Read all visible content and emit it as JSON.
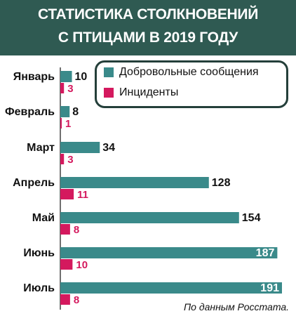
{
  "title": {
    "line1": "СТАТИСТИКА СТОЛКНОВЕНИЙ",
    "line2": "С ПТИЦАМИ В 2019 ГОДУ"
  },
  "legend": {
    "items": [
      {
        "label": "Добровольные сообщения",
        "color": "#3a8a8a"
      },
      {
        "label": "Инциденты",
        "color": "#d4195e"
      }
    ]
  },
  "source": "По данным Росстата.",
  "colors": {
    "header_bg": "#2f5a52",
    "reports": "#3a8a8a",
    "incidents": "#d4195e",
    "axis": "#111111"
  },
  "chart_data": {
    "type": "bar",
    "orientation": "horizontal",
    "categories": [
      "Январь",
      "Февраль",
      "Март",
      "Апрель",
      "Май",
      "Июнь",
      "Июль"
    ],
    "series": [
      {
        "name": "Добровольные сообщения",
        "values": [
          10,
          8,
          34,
          128,
          154,
          187,
          191
        ]
      },
      {
        "name": "Инциденты",
        "values": [
          3,
          1,
          3,
          11,
          8,
          10,
          8
        ]
      }
    ],
    "grid": false,
    "legend_position": "top-right"
  }
}
